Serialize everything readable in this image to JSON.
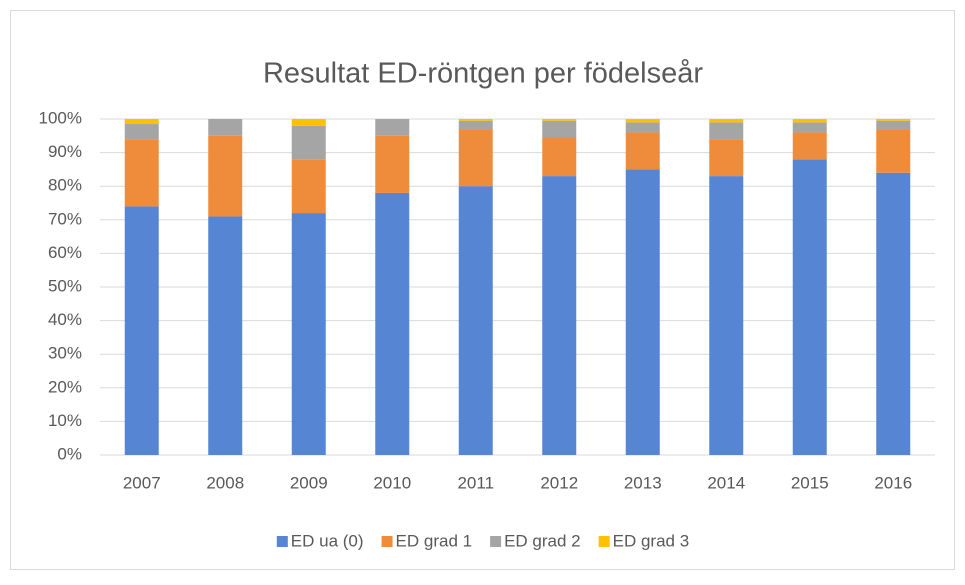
{
  "chart_data": {
    "type": "bar",
    "stacked": true,
    "title": "Resultat ED-röntgen per födelseår",
    "categories": [
      "2007",
      "2008",
      "2009",
      "2010",
      "2011",
      "2012",
      "2013",
      "2014",
      "2015",
      "2016"
    ],
    "series": [
      {
        "name": "ED ua (0)",
        "color": "#5585d3",
        "values": [
          74,
          71,
          72,
          78,
          80,
          83,
          85,
          83,
          88,
          84
        ]
      },
      {
        "name": "ED grad 1",
        "color": "#ef8c3b",
        "values": [
          20,
          24,
          16,
          17,
          17,
          11.5,
          11,
          11,
          8,
          13
        ]
      },
      {
        "name": "ED grad 2",
        "color": "#a5a5a5",
        "values": [
          4.5,
          5,
          10,
          5,
          2.5,
          5,
          3,
          5,
          3,
          2.5
        ]
      },
      {
        "name": "ED grad 3",
        "color": "#ffc000",
        "values": [
          1.5,
          0,
          2,
          0,
          0.5,
          0.5,
          1,
          1,
          1,
          0.5
        ]
      }
    ],
    "ylim": [
      0,
      100
    ],
    "yticks": [
      {
        "value": 0,
        "label": "0%"
      },
      {
        "value": 10,
        "label": "10%"
      },
      {
        "value": 20,
        "label": "20%"
      },
      {
        "value": 30,
        "label": "30%"
      },
      {
        "value": 40,
        "label": "40%"
      },
      {
        "value": 50,
        "label": "50%"
      },
      {
        "value": 60,
        "label": "60%"
      },
      {
        "value": 70,
        "label": "70%"
      },
      {
        "value": 80,
        "label": "80%"
      },
      {
        "value": 90,
        "label": "90%"
      },
      {
        "value": 100,
        "label": "100%"
      }
    ],
    "grid": true,
    "legend": "bottom"
  }
}
